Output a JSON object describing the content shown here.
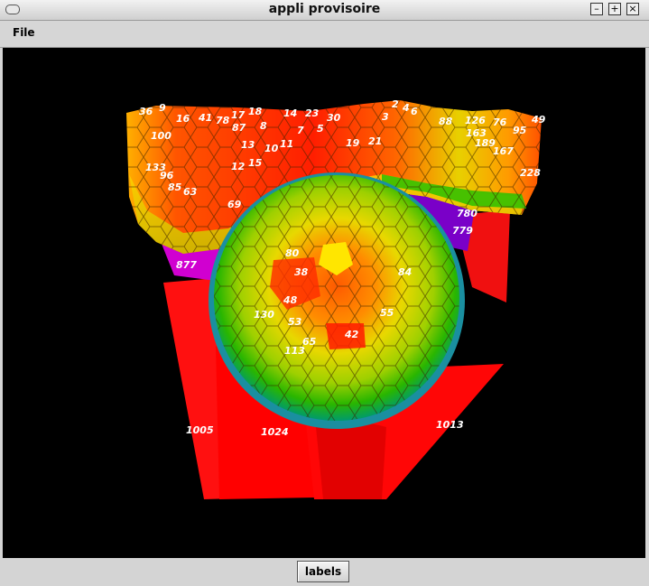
{
  "window": {
    "title": "appli provisoire"
  },
  "menu": {
    "items": [
      {
        "label": "File"
      }
    ]
  },
  "controls": {
    "minimize": "minimize-icon",
    "maximize": "maximize-icon",
    "close": "close-icon"
  },
  "viewport": {
    "background": "#000000",
    "cell_labels": [
      "36",
      "9",
      "16",
      "41",
      "78",
      "17",
      "18",
      "14",
      "23",
      "30",
      "2",
      "4",
      "6",
      "3",
      "88",
      "126",
      "76",
      "49",
      "100",
      "87",
      "8",
      "7",
      "5",
      "13",
      "10",
      "11",
      "19",
      "21",
      "163",
      "95",
      "189",
      "167",
      "133",
      "12",
      "15",
      "96",
      "85",
      "63",
      "228",
      "69",
      "780",
      "779",
      "80",
      "877",
      "38",
      "84",
      "48",
      "130",
      "53",
      "55",
      "65",
      "42",
      "113",
      "1005",
      "1024",
      "1013"
    ]
  },
  "footer": {
    "button_label": "labels"
  }
}
